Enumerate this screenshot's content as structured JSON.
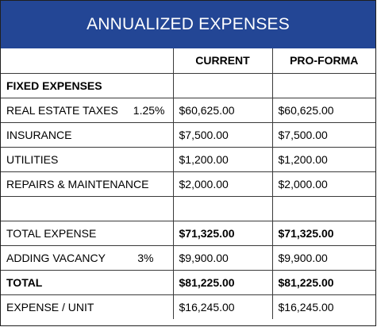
{
  "title": "ANNUALIZED EXPENSES",
  "columns": {
    "current": "CURRENT",
    "proforma": "PRO-FORMA"
  },
  "section": "FIXED EXPENSES",
  "rows": [
    {
      "label": "REAL ESTATE TAXES",
      "rate": "1.25%",
      "current": "$60,625.00",
      "proforma": "$60,625.00"
    },
    {
      "label": "INSURANCE",
      "current": "$7,500.00",
      "proforma": "$7,500.00"
    },
    {
      "label": "UTILITIES",
      "current": "$1,200.00",
      "proforma": "$1,200.00"
    },
    {
      "label": "REPAIRS & MAINTENANCE",
      "current": "$2,000.00",
      "proforma": "$2,000.00"
    }
  ],
  "total_expense": {
    "label": "TOTAL EXPENSE",
    "current": "$71,325.00",
    "proforma": "$71,325.00"
  },
  "vacancy": {
    "label": "ADDING VACANCY",
    "rate": "3%",
    "current": "$9,900.00",
    "proforma": "$9,900.00"
  },
  "total": {
    "label": "TOTAL",
    "current": "$81,225.00",
    "proforma": "$81,225.00"
  },
  "per_unit": {
    "label": "EXPENSE / UNIT",
    "current": "$16,245.00",
    "proforma": "$16,245.00"
  },
  "colors": {
    "header_bg": "#234695",
    "header_text": "#ffffff"
  }
}
